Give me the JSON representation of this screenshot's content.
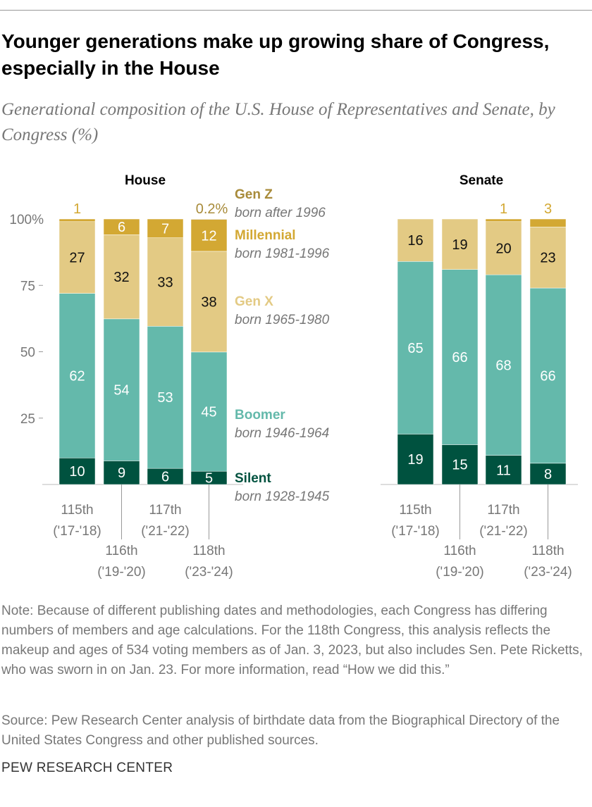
{
  "title": "Younger generations make up growing share of Congress, especially in the House",
  "subtitle": "Generational composition of the U.S. House of Representatives and Senate, by Congress (%)",
  "note": "Note: Because of different publishing dates and methodologies, each Congress has differing numbers of members and age calculations. For the 118th Congress, this analysis reflects the makeup and ages of 534 voting members as of Jan. 3, 2023, but also includes Sen. Pete Ricketts, who was sworn in on Jan. 23. For more information, read “How we did this.”",
  "source": "Source: Pew Research Center analysis of birthdate data from the Biographical Directory of the United States Congress and other published sources.",
  "brand": "PEW RESEARCH CENTER",
  "chart_data": [
    {
      "type": "bar",
      "stacked": true,
      "title": "House",
      "ylim": [
        0,
        100
      ],
      "yticks": [
        "100%",
        "75",
        "50",
        "25"
      ],
      "ytick_values": [
        100,
        75,
        50,
        25
      ],
      "categories": [
        [
          "115th",
          "('17-'18)"
        ],
        [
          "116th",
          "('19-'20)"
        ],
        [
          "117th",
          "('21-'22)"
        ],
        [
          "118th",
          "('23-'24)"
        ]
      ],
      "series": [
        {
          "name": "Silent",
          "values": [
            10,
            9,
            6,
            5
          ],
          "labels": [
            "10",
            "9",
            "6",
            "5"
          ]
        },
        {
          "name": "Boomer",
          "values": [
            62,
            54,
            53,
            45
          ],
          "labels": [
            "62",
            "54",
            "53",
            "45"
          ]
        },
        {
          "name": "Gen X",
          "values": [
            27,
            32,
            33,
            38
          ],
          "labels": [
            "27",
            "32",
            "33",
            "38"
          ]
        },
        {
          "name": "Millennial",
          "values": [
            1,
            6,
            7,
            12
          ],
          "labels": [
            "1",
            "6",
            "7",
            "12"
          ]
        },
        {
          "name": "Gen Z",
          "values": [
            0,
            0,
            0,
            0.2
          ],
          "labels": [
            "",
            "",
            "",
            "0.2%"
          ]
        }
      ],
      "legend": [
        {
          "name": "Gen Z",
          "sub": "born after 1996"
        },
        {
          "name": "Millennial",
          "sub": "born 1981-1996"
        },
        {
          "name": "Gen X",
          "sub": "born 1965-1980"
        },
        {
          "name": "Boomer",
          "sub": "born 1946-1964"
        },
        {
          "name": "Silent",
          "sub": "born 1928-1945"
        }
      ]
    },
    {
      "type": "bar",
      "stacked": true,
      "title": "Senate",
      "ylim": [
        0,
        100
      ],
      "categories": [
        [
          "115th",
          "('17-'18)"
        ],
        [
          "116th",
          "('19-'20)"
        ],
        [
          "117th",
          "('21-'22)"
        ],
        [
          "118th",
          "('23-'24)"
        ]
      ],
      "series": [
        {
          "name": "Silent",
          "values": [
            19,
            15,
            11,
            8
          ],
          "labels": [
            "19",
            "15",
            "11",
            "8"
          ]
        },
        {
          "name": "Boomer",
          "values": [
            65,
            66,
            68,
            66
          ],
          "labels": [
            "65",
            "66",
            "68",
            "66"
          ]
        },
        {
          "name": "Gen X",
          "values": [
            16,
            19,
            20,
            23
          ],
          "labels": [
            "16",
            "19",
            "20",
            "23"
          ]
        },
        {
          "name": "Millennial",
          "values": [
            0,
            0,
            1,
            3
          ],
          "labels": [
            "",
            "",
            "1",
            "3"
          ]
        }
      ]
    }
  ],
  "colors": {
    "Silent": "#00523f",
    "Boomer": "#64b9ab",
    "Gen X": "#e3ca84",
    "Millennial": "#d3a833",
    "Gen Z": "#a88b3a",
    "axis": "#777"
  }
}
